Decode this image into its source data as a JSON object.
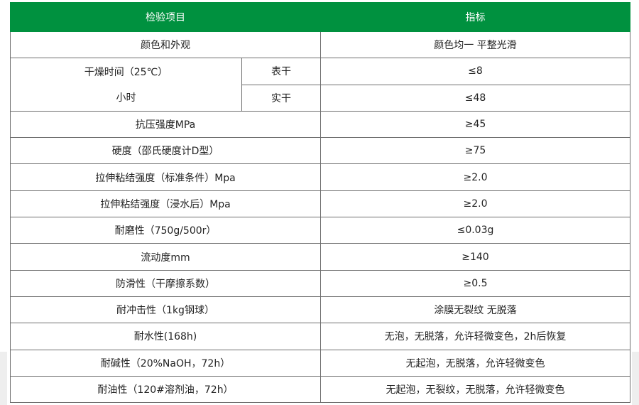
{
  "header": {
    "item": "检验项目",
    "index": "指标"
  },
  "colors": {
    "header_bg": "#00913f"
  },
  "drying": {
    "label_line1": "干燥时间（25℃）",
    "label_line2": "小时",
    "surface": {
      "label": "表干",
      "value": "≤8"
    },
    "hard": {
      "label": "实干",
      "value": "≤48"
    }
  },
  "first_row": {
    "item": "颜色和外观",
    "value": "颜色均一 平整光滑"
  },
  "rows": [
    {
      "item": "抗压强度MPa",
      "value": "≥45"
    },
    {
      "item": "硬度（邵氏硬度计D型）",
      "value": "≥75"
    },
    {
      "item": "拉伸粘结强度（标准条件）Mpa",
      "value": "≥2.0"
    },
    {
      "item": "拉伸粘结强度（浸水后）Mpa",
      "value": "≥2.0"
    },
    {
      "item": "耐磨性（750g/500r）",
      "value": "≤0.03g"
    },
    {
      "item": "流动度mm",
      "value": "≥140"
    },
    {
      "item": "防滑性（干摩擦系数）",
      "value": "≥0.5"
    },
    {
      "item": "耐冲击性（1kg钢球）",
      "value": "涂膜无裂纹 无脱落"
    },
    {
      "item": "耐水性(168h)",
      "value": "无泡，无脱落，允许轻微变色，2h后恢复"
    },
    {
      "item": "耐碱性（20%NaOH，72h）",
      "value": "无起泡，无脱落，允许轻微变色"
    },
    {
      "item": "耐油性（120#溶剂油，72h）",
      "value": "无起泡，无裂纹，无脱落，允许轻微变色"
    }
  ]
}
